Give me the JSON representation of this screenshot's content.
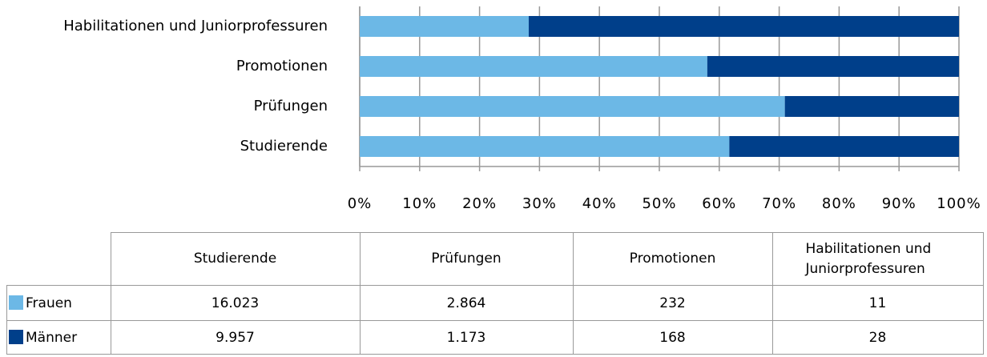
{
  "chart_data": {
    "type": "bar",
    "orientation": "horizontal",
    "stacking": "percent",
    "categories": [
      "Studierende",
      "Prüfungen",
      "Promotionen",
      "Habilitationen und Juniorprofessuren"
    ],
    "series": [
      {
        "name": "Frauen",
        "color": "#6cb8e6",
        "values": [
          16023,
          2864,
          232,
          11
        ],
        "value_labels": [
          "16.023",
          "2.864",
          "232",
          "11"
        ]
      },
      {
        "name": "Männer",
        "color": "#003f8a",
        "values": [
          9957,
          1173,
          168,
          28
        ],
        "value_labels": [
          "9.957",
          "1.173",
          "168",
          "28"
        ]
      }
    ],
    "xlim": [
      0,
      100
    ],
    "xticks": [
      {
        "value": 0,
        "label": "0%"
      },
      {
        "value": 10,
        "label": "10%"
      },
      {
        "value": 20,
        "label": "20%"
      },
      {
        "value": 30,
        "label": "30%"
      },
      {
        "value": 40,
        "label": "40%"
      },
      {
        "value": 50,
        "label": "50%"
      },
      {
        "value": 60,
        "label": "60%"
      },
      {
        "value": 70,
        "label": "70%"
      },
      {
        "value": 80,
        "label": "80%"
      },
      {
        "value": 90,
        "label": "90%"
      },
      {
        "value": 100,
        "label": "100%"
      }
    ],
    "grid": true,
    "data_table": true
  }
}
